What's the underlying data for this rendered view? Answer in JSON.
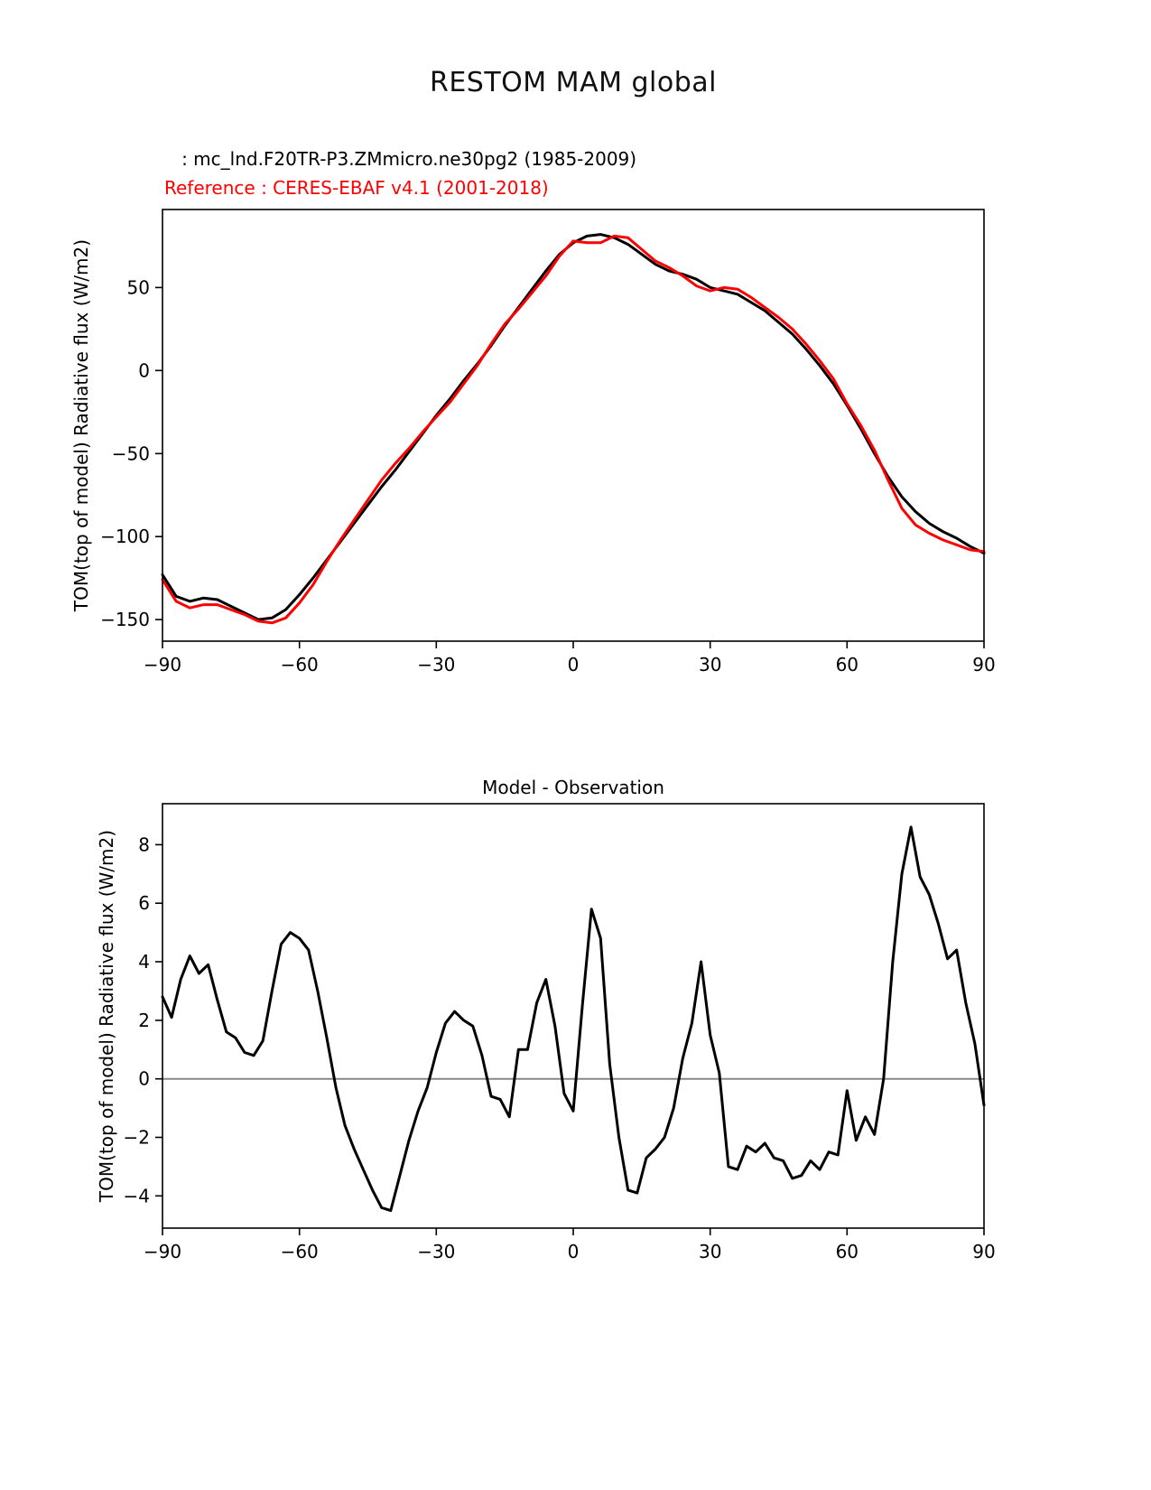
{
  "figure": {
    "title": "RESTOM MAM global",
    "legend": {
      "model_label": "   : mc_lnd.F20TR-P3.ZMmicro.ne30pg2 (1985-2009)",
      "reference_label": "Reference : CERES-EBAF v4.1 (2001-2018)"
    },
    "colors": {
      "model": "#000000",
      "reference": "#ff0000",
      "zero_line": "#888888"
    }
  },
  "chart_data": [
    {
      "type": "line",
      "title": "",
      "xlabel": "",
      "ylabel": "TOM(top of model) Radiative flux (W/m2)",
      "xlim": [
        -90,
        90
      ],
      "ylim": [
        -163,
        97
      ],
      "xticks": [
        -90,
        -60,
        -30,
        0,
        30,
        60,
        90
      ],
      "yticks": [
        50,
        0,
        -50,
        -100,
        -150
      ],
      "grid": false,
      "zero_line": false,
      "x": [
        -90,
        -87,
        -84,
        -81,
        -78,
        -75,
        -72,
        -69,
        -66,
        -63,
        -60,
        -57,
        -54,
        -51,
        -48,
        -45,
        -42,
        -39,
        -36,
        -33,
        -30,
        -27,
        -24,
        -21,
        -18,
        -15,
        -12,
        -9,
        -6,
        -3,
        0,
        3,
        6,
        9,
        12,
        15,
        18,
        21,
        24,
        27,
        30,
        33,
        36,
        39,
        42,
        45,
        48,
        51,
        54,
        57,
        60,
        63,
        66,
        69,
        72,
        75,
        78,
        81,
        84,
        87,
        90
      ],
      "series": [
        {
          "name": "mc_lnd.F20TR-P3.ZMmicro.ne30pg2 (1985-2009)",
          "color": "#000000",
          "values": [
            -123,
            -136,
            -139,
            -137,
            -138,
            -142,
            -146,
            -150,
            -149,
            -144,
            -135,
            -125,
            -114,
            -103,
            -92,
            -81,
            -70,
            -60,
            -49,
            -38,
            -27,
            -17,
            -6,
            4,
            15,
            27,
            38,
            49,
            60,
            70,
            77,
            81,
            82,
            80,
            76,
            70,
            64,
            60,
            58,
            55,
            50,
            48,
            46,
            41,
            36,
            29,
            22,
            13,
            3,
            -8,
            -21,
            -35,
            -50,
            -64,
            -76,
            -85,
            -92,
            -97,
            -101,
            -106,
            -110
          ]
        },
        {
          "name": "CERES-EBAF v4.1 (2001-2018)",
          "color": "#ff0000",
          "values": [
            -126,
            -139,
            -143,
            -141,
            -141,
            -144,
            -147,
            -151,
            -152,
            -149,
            -140,
            -129,
            -115,
            -102,
            -90,
            -78,
            -66,
            -56,
            -47,
            -37,
            -28,
            -19,
            -8,
            3,
            16,
            28,
            37,
            47,
            57,
            69,
            78,
            77,
            77,
            81,
            80,
            73,
            66,
            62,
            57,
            51,
            48,
            50,
            49,
            44,
            38,
            32,
            25,
            16,
            6,
            -5,
            -20,
            -33,
            -48,
            -66,
            -83,
            -93,
            -98,
            -102,
            -105,
            -108,
            -109
          ]
        }
      ]
    },
    {
      "type": "line",
      "title": "Model - Observation",
      "xlabel": "",
      "ylabel": "TOM(top of model) Radiative flux (W/m2)",
      "xlim": [
        -90,
        90
      ],
      "ylim": [
        -5.1,
        9.4
      ],
      "xticks": [
        -90,
        -60,
        -30,
        0,
        30,
        60,
        90
      ],
      "yticks": [
        8,
        6,
        4,
        2,
        0,
        -2,
        -4
      ],
      "grid": false,
      "zero_line": true,
      "x": [
        -90,
        -88,
        -86,
        -84,
        -82,
        -80,
        -78,
        -76,
        -74,
        -72,
        -70,
        -68,
        -66,
        -64,
        -62,
        -60,
        -58,
        -56,
        -54,
        -52,
        -50,
        -48,
        -46,
        -44,
        -42,
        -40,
        -38,
        -36,
        -34,
        -32,
        -30,
        -28,
        -26,
        -24,
        -22,
        -20,
        -18,
        -16,
        -14,
        -12,
        -10,
        -8,
        -6,
        -4,
        -2,
        0,
        2,
        4,
        6,
        8,
        10,
        12,
        14,
        16,
        18,
        20,
        22,
        24,
        26,
        28,
        30,
        32,
        34,
        36,
        38,
        40,
        42,
        44,
        46,
        48,
        50,
        52,
        54,
        56,
        58,
        60,
        62,
        64,
        66,
        68,
        70,
        72,
        74,
        76,
        78,
        80,
        82,
        84,
        86,
        88,
        90
      ],
      "series": [
        {
          "name": "Model - Observation",
          "color": "#000000",
          "values": [
            2.8,
            2.1,
            3.4,
            4.2,
            3.6,
            3.9,
            2.7,
            1.6,
            1.4,
            0.9,
            0.8,
            1.3,
            3.0,
            4.6,
            5.0,
            4.8,
            4.4,
            3.0,
            1.4,
            -0.3,
            -1.6,
            -2.4,
            -3.1,
            -3.8,
            -4.4,
            -4.5,
            -3.3,
            -2.1,
            -1.1,
            -0.3,
            0.9,
            1.9,
            2.3,
            2.0,
            1.8,
            0.8,
            -0.6,
            -0.7,
            -1.3,
            1.0,
            1.0,
            2.6,
            3.4,
            1.8,
            -0.5,
            -1.1,
            2.5,
            5.8,
            4.8,
            0.5,
            -2.0,
            -3.8,
            -3.9,
            -2.7,
            -2.4,
            -2.0,
            -1.0,
            0.7,
            1.9,
            4.0,
            1.5,
            0.2,
            -3.0,
            -3.1,
            -2.3,
            -2.5,
            -2.2,
            -2.7,
            -2.8,
            -3.4,
            -3.3,
            -2.8,
            -3.1,
            -2.5,
            -2.6,
            -0.4,
            -2.1,
            -1.3,
            -1.9,
            0.0,
            4.0,
            7.0,
            8.6,
            6.9,
            6.3,
            5.3,
            4.1,
            4.4,
            2.6,
            1.2,
            -0.9
          ]
        }
      ]
    }
  ]
}
